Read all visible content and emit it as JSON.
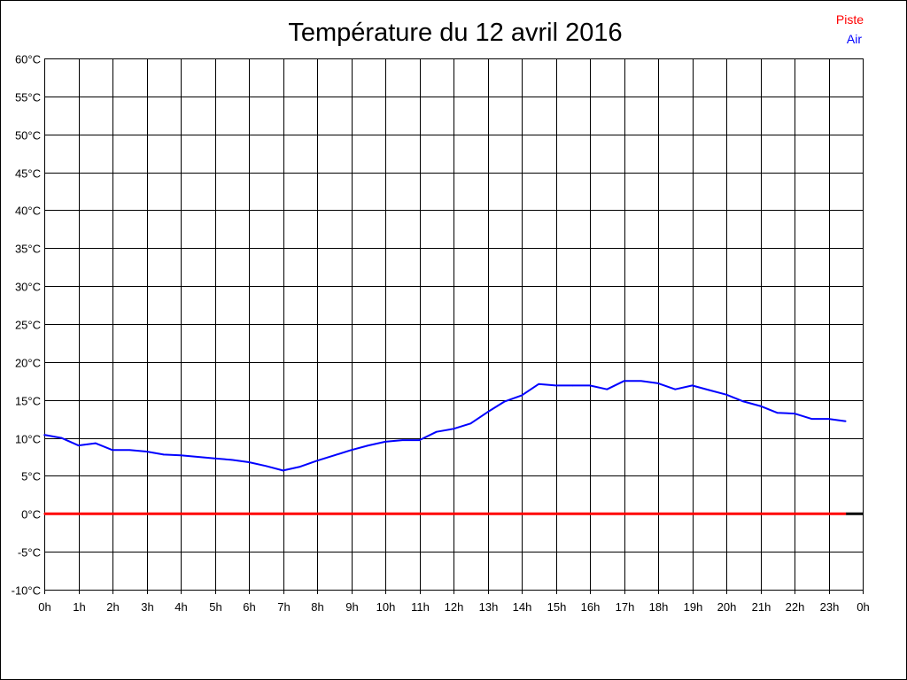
{
  "chart_data": {
    "type": "line",
    "title": "Température du 12 avril 2016",
    "xlabel": "",
    "ylabel": "",
    "x_tick_labels": [
      "0h",
      "1h",
      "2h",
      "3h",
      "4h",
      "5h",
      "6h",
      "7h",
      "8h",
      "9h",
      "10h",
      "11h",
      "12h",
      "13h",
      "14h",
      "15h",
      "16h",
      "17h",
      "18h",
      "19h",
      "20h",
      "21h",
      "22h",
      "23h",
      "0h"
    ],
    "y_tick_labels": [
      "60°C",
      "55°C",
      "50°C",
      "45°C",
      "40°C",
      "35°C",
      "30°C",
      "25°C",
      "20°C",
      "15°C",
      "10°C",
      "5°C",
      "0°C",
      "-5°C",
      "-10°C"
    ],
    "xlim": [
      0,
      24
    ],
    "ylim": [
      -10,
      60
    ],
    "grid": true,
    "legend": "top-right",
    "x": [
      0,
      0.5,
      1,
      1.5,
      2,
      2.5,
      3,
      3.5,
      4,
      4.5,
      5,
      5.5,
      6,
      6.5,
      7,
      7.5,
      8,
      8.5,
      9,
      9.5,
      10,
      10.5,
      11,
      11.5,
      12,
      12.5,
      13,
      13.5,
      14,
      14.5,
      15,
      15.5,
      16,
      16.5,
      17,
      17.5,
      18,
      18.5,
      19,
      19.5,
      20,
      20.5,
      21,
      21.5,
      22,
      22.5,
      23,
      23.5
    ],
    "series": [
      {
        "name": "Piste",
        "color": "#ff0000",
        "values": [
          0,
          0,
          0,
          0,
          0,
          0,
          0,
          0,
          0,
          0,
          0,
          0,
          0,
          0,
          0,
          0,
          0,
          0,
          0,
          0,
          0,
          0,
          0,
          0,
          0,
          0,
          0,
          0,
          0,
          0,
          0,
          0,
          0,
          0,
          0,
          0,
          0,
          0,
          0,
          0,
          0,
          0,
          0,
          0,
          0,
          0,
          0,
          0
        ]
      },
      {
        "name": "Air",
        "color": "#0000ff",
        "values": [
          10.4,
          10.0,
          9.0,
          9.3,
          8.4,
          8.4,
          8.2,
          7.8,
          7.7,
          7.5,
          7.3,
          7.1,
          6.8,
          6.3,
          5.7,
          6.2,
          7.0,
          7.7,
          8.4,
          9.0,
          9.5,
          9.7,
          9.7,
          10.8,
          11.2,
          11.9,
          13.4,
          14.8,
          15.6,
          17.1,
          16.9,
          16.9,
          16.9,
          16.4,
          17.5,
          17.5,
          17.2,
          16.4,
          16.9,
          16.3,
          15.7,
          14.8,
          14.2,
          13.3,
          13.2,
          12.5,
          12.5,
          12.2
        ]
      }
    ]
  }
}
